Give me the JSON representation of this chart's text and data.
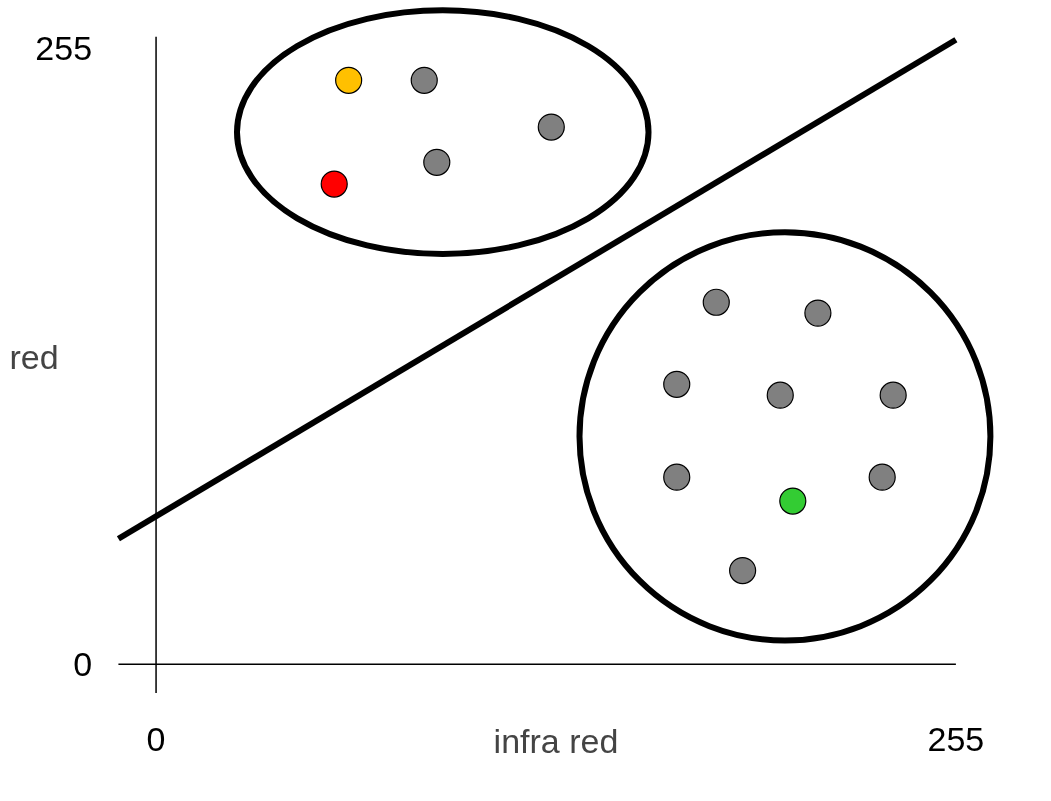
{
  "chart_data": {
    "type": "scatter",
    "xlabel": "infra red",
    "ylabel": "red",
    "xlim": [
      -12,
      255
    ],
    "ylim": [
      -12,
      260
    ],
    "xticks": [
      0,
      255
    ],
    "yticks": [
      0,
      255
    ],
    "grid": false,
    "marker": "circle",
    "series": [
      {
        "color": "#808080",
        "x": [
          85.5,
          126,
          89.5,
          178.6,
          211,
          166,
          199,
          235,
          166,
          231.5,
          187
        ],
        "values": [
          242,
          222.6,
          208,
          150,
          145.5,
          116,
          111.5,
          111.5,
          77.5,
          77.5,
          38.8
        ]
      },
      {
        "color": "#ffc000",
        "x": [
          61.4
        ],
        "values": [
          242
        ]
      },
      {
        "color": "#ff0000",
        "x": [
          56.8
        ],
        "values": [
          199
        ]
      },
      {
        "color": "#33cc33",
        "x": [
          203
        ],
        "values": [
          67.6
        ]
      },
      {
        "type": "line",
        "marker": "none",
        "color": "#000000",
        "x": [
          -12,
          255
        ],
        "values": [
          52.0,
          258.8
        ]
      }
    ]
  }
}
